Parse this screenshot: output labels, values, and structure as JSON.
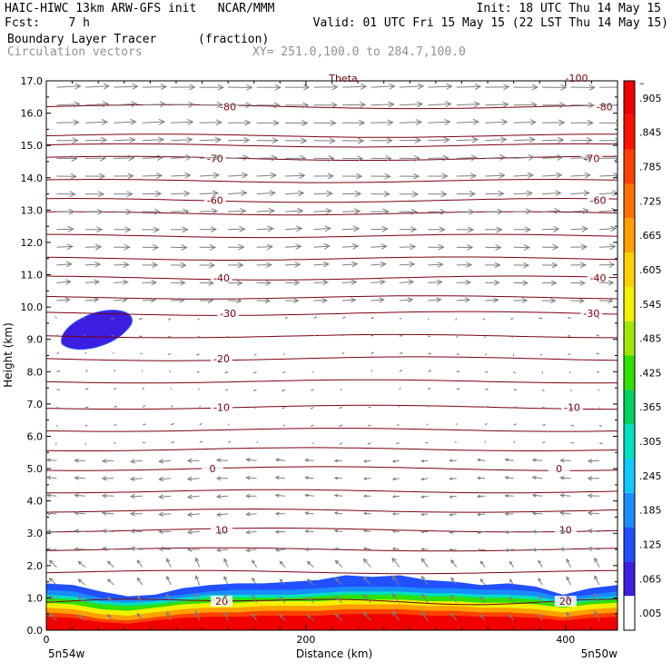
{
  "header": {
    "line1_left": "HAIC-HIWC 13km ARW-GFS init   NCAR/MMM",
    "line1_right": "Init: 18 UTC Thu 14 May 15",
    "line2_left": "Fcst:    7 h",
    "line2_right": "Valid: 01 UTC Fri 15 May 15 (22 LST Thu 14 May 15)",
    "line3_left": "Boundary Layer Tracer",
    "line3_units": "(fraction)",
    "line4_left": "Circulation vectors",
    "line4_right": "XY= 251.0,100.0 to 284.7,100.0"
  },
  "colors": {
    "contour": "#7a0010",
    "vector": "#7f7f7f",
    "tracer_scale": [
      "#ffffff",
      "#3c1ee0",
      "#2050ff",
      "#1a8cff",
      "#10c8ff",
      "#00e0c0",
      "#00d060",
      "#30e000",
      "#a0e800",
      "#f0f000",
      "#ffd000",
      "#ffa000",
      "#ff7000",
      "#ff4000",
      "#ff1000",
      "#f00000"
    ]
  },
  "chart_data": {
    "type": "cross-section",
    "title": "Boundary Layer Tracer",
    "xlabel": "Distance (km)",
    "ylabel": "Height (km)",
    "xlim": [
      0,
      440
    ],
    "ylim": [
      0,
      17
    ],
    "x_ticks": [
      0,
      200,
      400
    ],
    "x_ticks_minor_step": 20,
    "y_ticks": [
      "0.0",
      "1.0",
      "2.0",
      "3.0",
      "4.0",
      "5.0",
      "6.0",
      "7.0",
      "8.0",
      "9.0",
      "10.0",
      "11.0",
      "12.0",
      "13.0",
      "14.0",
      "15.0",
      "16.0",
      "17.0"
    ],
    "endpoints": [
      "5n54w",
      "5n50w"
    ],
    "colorbar_labels": [
      ".005",
      ".065",
      ".125",
      ".185",
      ".245",
      ".305",
      ".365",
      ".425",
      ".485",
      ".545",
      ".605",
      ".665",
      ".725",
      ".785",
      ".845",
      ".905"
    ],
    "top_labels": [
      "Theta",
      "-100"
    ],
    "temperature_contours": [
      {
        "label": "-80",
        "height": 16.2,
        "label_x": [
          140,
          430
        ]
      },
      {
        "label": "-70",
        "height": 14.6,
        "label_x": [
          130,
          420
        ]
      },
      {
        "label": "-60",
        "height": 13.3,
        "label_x": [
          130,
          425
        ]
      },
      {
        "label": "-40",
        "height": 10.9,
        "label_x": [
          135,
          425
        ]
      },
      {
        "label": "-30",
        "height": 9.8,
        "label_x": [
          140,
          420
        ]
      },
      {
        "label": "-20",
        "height": 8.4,
        "label_x": [
          135,
          0
        ]
      },
      {
        "label": "-10",
        "height": 6.9,
        "label_x": [
          135,
          405
        ]
      },
      {
        "label": "0",
        "height": 5.0,
        "label_x": [
          128,
          395
        ]
      },
      {
        "label": "10",
        "height": 3.1,
        "label_x": [
          135,
          400
        ]
      },
      {
        "label": "20",
        "height": 0.9,
        "label_x": [
          135,
          400
        ]
      }
    ],
    "tracer_top_km": 1.4,
    "tracer_blob": {
      "center_x": 40,
      "center_height": 9.2
    }
  }
}
